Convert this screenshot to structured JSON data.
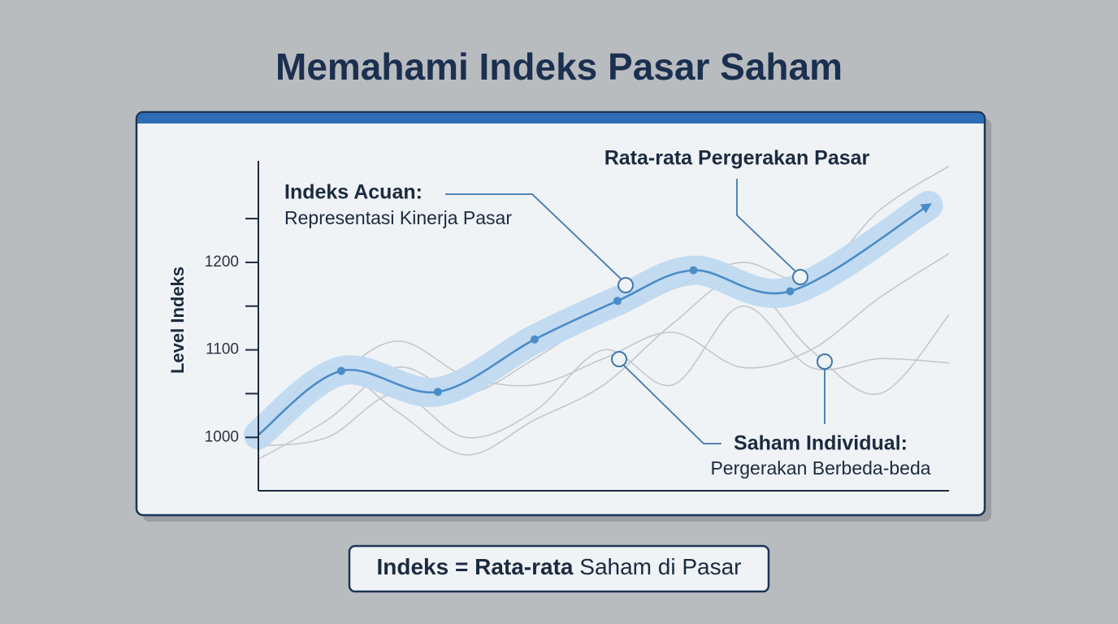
{
  "chart_data": {
    "type": "line",
    "title": "Memahami Indeks Pasar Saham",
    "y_label": "Level Indeks",
    "xlim": [
      0,
      100
    ],
    "ylim": [
      939,
      1316
    ],
    "yticks": [
      1000,
      1100,
      1200
    ],
    "minor_yticks": [
      1050,
      1150,
      1250
    ],
    "annotations": {
      "benchmark_title": "Indeks Acuan:",
      "benchmark_text": "Representasi Kinerja Pasar",
      "average": "Rata-rata Pergerakan Pasar",
      "individual_title": "Saham Individual:",
      "individual_text": "Pergerakan Berbeda-beda"
    },
    "formula": {
      "bold": "Indeks = Rata-rata",
      "rest": " Saham di Pasar"
    },
    "index": {
      "color": "#4a8cc7",
      "band_color": "#bcd8f1",
      "x": [
        0,
        12,
        26,
        40,
        52,
        63,
        77,
        97
      ],
      "values": [
        1003,
        1076,
        1052,
        1112,
        1156,
        1191,
        1167,
        1265
      ]
    },
    "stocks": [
      {
        "color": "#c4c7cb",
        "values": [
          975,
          1020,
          1080,
          1050,
          1090,
          1140,
          1170,
          1200,
          1180,
          1260,
          1310
        ]
      },
      {
        "color": "#c4c7cb",
        "values": [
          985,
          1060,
          1110,
          1070,
          1060,
          1090,
          1120,
          1080,
          1100,
          1160,
          1210
        ]
      },
      {
        "color": "#c4c7cb",
        "values": [
          990,
          1000,
          1050,
          1000,
          1030,
          1100,
          1060,
          1150,
          1080,
          1090,
          1085
        ]
      },
      {
        "color": "#c4c7cb",
        "values": [
          1000,
          1080,
          1030,
          980,
          1020,
          1060,
          1130,
          1180,
          1100,
          1050,
          1140
        ]
      }
    ],
    "stocks_x": [
      0,
      10,
      20,
      30,
      40,
      50,
      60,
      70,
      80,
      90,
      100
    ]
  }
}
